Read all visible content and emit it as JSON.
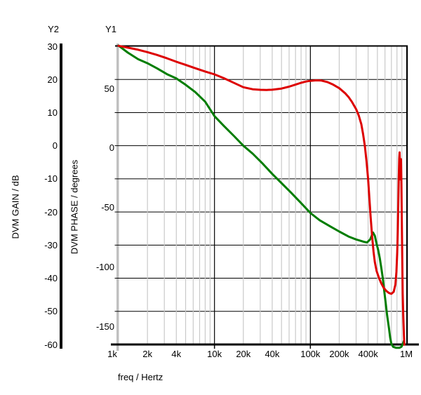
{
  "window": {
    "background": "#ffffff"
  },
  "chart_data": {
    "type": "line",
    "title": "",
    "x_axis": {
      "label": "freq / Hertz",
      "scale": "log",
      "min": 1000,
      "max": 1000000,
      "tick_labels": [
        {
          "value": 1000,
          "label": "1k",
          "dx": -9
        },
        {
          "value": 2000,
          "label": "2k",
          "dx": 0
        },
        {
          "value": 4000,
          "label": "4k",
          "dx": 0
        },
        {
          "value": 10000,
          "label": "10k",
          "dx": 0
        },
        {
          "value": 20000,
          "label": "20k",
          "dx": 0
        },
        {
          "value": 40000,
          "label": "40k",
          "dx": 0
        },
        {
          "value": 100000,
          "label": "100k",
          "dx": 0
        },
        {
          "value": 200000,
          "label": "200k",
          "dx": 0
        },
        {
          "value": 400000,
          "label": "400k",
          "dx": 0
        },
        {
          "value": 1000000,
          "label": "1M",
          "dx": 0
        }
      ]
    },
    "y2_axis": {
      "name": "Y2",
      "label": "DVM GAIN / dB",
      "min": -60,
      "max": 30,
      "tick_step": 10,
      "ticks": [
        30,
        20,
        10,
        0,
        -10,
        -20,
        -30,
        -40,
        -50,
        -60
      ]
    },
    "y1_axis": {
      "name": "Y1",
      "label": "DVM PHASE / degrees",
      "min": -165.3,
      "max": 85.4,
      "ticks": [
        50,
        0,
        -50,
        -100,
        -150
      ]
    },
    "grid": {
      "h_line_color": "#000000",
      "major_v_color": "#000000",
      "minor_v_color": "#c9c9c9",
      "y1_bar_color": "#c0c0c0",
      "y2_bar_color": "#000000"
    },
    "legend_position": "none",
    "series": [
      {
        "name": "DVM GAIN",
        "axis": "y2",
        "unit": "dB",
        "color": "#007d00",
        "points": [
          [
            1000,
            30.2
          ],
          [
            1250,
            28.1
          ],
          [
            1600,
            26.1
          ],
          [
            2000,
            24.9
          ],
          [
            2500,
            23.4
          ],
          [
            3200,
            21.6
          ],
          [
            4000,
            20.3
          ],
          [
            5000,
            18.4
          ],
          [
            6300,
            16.2
          ],
          [
            8000,
            13.3
          ],
          [
            10000,
            8.9
          ],
          [
            12500,
            6.0
          ],
          [
            16000,
            2.9
          ],
          [
            20000,
            0.0
          ],
          [
            25000,
            -2.4
          ],
          [
            32000,
            -5.5
          ],
          [
            40000,
            -8.5
          ],
          [
            50000,
            -11.3
          ],
          [
            63000,
            -14.2
          ],
          [
            80000,
            -17.3
          ],
          [
            100000,
            -20.3
          ],
          [
            125000,
            -22.5
          ],
          [
            160000,
            -24.3
          ],
          [
            200000,
            -25.9
          ],
          [
            250000,
            -27.4
          ],
          [
            300000,
            -28.3
          ],
          [
            360000,
            -29.0
          ],
          [
            390000,
            -29.2
          ],
          [
            420000,
            -28.3
          ],
          [
            450000,
            -26.2
          ],
          [
            470000,
            -27.2
          ],
          [
            490000,
            -29.6
          ],
          [
            510000,
            -31.5
          ],
          [
            530000,
            -34.0
          ],
          [
            550000,
            -37.0
          ],
          [
            570000,
            -40.0
          ],
          [
            590000,
            -44.0
          ],
          [
            610000,
            -47.5
          ],
          [
            630000,
            -51.0
          ],
          [
            660000,
            -55.0
          ],
          [
            680000,
            -58.0
          ],
          [
            700000,
            -59.8
          ],
          [
            730000,
            -60.7
          ],
          [
            780000,
            -61.0
          ],
          [
            850000,
            -61.0
          ],
          [
            890000,
            -60.7
          ],
          [
            920000,
            -59.9
          ],
          [
            945000,
            -58.9
          ]
        ]
      },
      {
        "name": "DVM PHASE",
        "axis": "y1",
        "unit": "degrees",
        "color": "#dd0000",
        "points": [
          [
            1000,
            85.8
          ],
          [
            1300,
            84.0
          ],
          [
            1600,
            82.5
          ],
          [
            2000,
            80.5
          ],
          [
            2500,
            78.2
          ],
          [
            3200,
            75.3
          ],
          [
            4000,
            72.4
          ],
          [
            5000,
            69.8
          ],
          [
            6300,
            67.0
          ],
          [
            8000,
            64.2
          ],
          [
            10000,
            61.8
          ],
          [
            12500,
            58.6
          ],
          [
            16000,
            54.6
          ],
          [
            20000,
            51.0
          ],
          [
            25000,
            49.3
          ],
          [
            30000,
            48.8
          ],
          [
            35000,
            48.7
          ],
          [
            40000,
            48.9
          ],
          [
            50000,
            49.9
          ],
          [
            60000,
            51.5
          ],
          [
            70000,
            53.2
          ],
          [
            80000,
            54.7
          ],
          [
            90000,
            55.8
          ],
          [
            100000,
            56.4
          ],
          [
            115000,
            56.8
          ],
          [
            130000,
            56.6
          ],
          [
            150000,
            55.4
          ],
          [
            170000,
            53.5
          ],
          [
            200000,
            50.2
          ],
          [
            230000,
            46.0
          ],
          [
            250000,
            42.8
          ],
          [
            270000,
            38.9
          ],
          [
            300000,
            32.6
          ],
          [
            320000,
            27.0
          ],
          [
            340000,
            19.8
          ],
          [
            355000,
            11.4
          ],
          [
            370000,
            1.5
          ],
          [
            385000,
            -11.0
          ],
          [
            400000,
            -26.0
          ],
          [
            412000,
            -42.0
          ],
          [
            425000,
            -58.0
          ],
          [
            440000,
            -74.0
          ],
          [
            455000,
            -87.0
          ],
          [
            470000,
            -96.0
          ],
          [
            490000,
            -103.5
          ],
          [
            520000,
            -109.5
          ],
          [
            550000,
            -114.0
          ],
          [
            580000,
            -117.5
          ],
          [
            620000,
            -120.3
          ],
          [
            660000,
            -122.0
          ],
          [
            700000,
            -122.7
          ],
          [
            740000,
            -121.0
          ],
          [
            770000,
            -115.0
          ],
          [
            790000,
            -104.0
          ],
          [
            805000,
            -88.0
          ],
          [
            815000,
            -70.0
          ],
          [
            825000,
            -48.0
          ],
          [
            835000,
            -25.0
          ],
          [
            845000,
            -8.5
          ],
          [
            852000,
            -3.8
          ],
          [
            860000,
            -14.0
          ],
          [
            868000,
            -26.5
          ],
          [
            876000,
            -17.0
          ],
          [
            882000,
            -9.5
          ],
          [
            890000,
            -30.0
          ],
          [
            898000,
            -58.0
          ],
          [
            908000,
            -94.0
          ],
          [
            918000,
            -123.0
          ],
          [
            930000,
            -141.0
          ],
          [
            943000,
            -154.5
          ],
          [
            956000,
            -165.5
          ]
        ]
      }
    ]
  }
}
